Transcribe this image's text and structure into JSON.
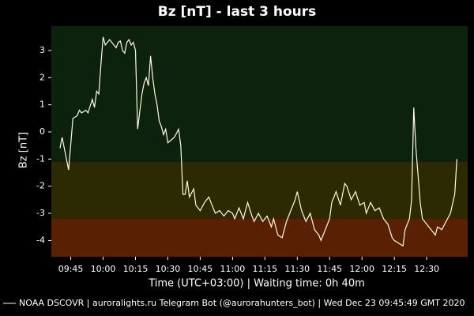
{
  "chart_data": {
    "type": "line",
    "title": "Bz [nT] - last 3 hours",
    "y_label": "Bz [nT]",
    "x_label": "Time (UTC+03:00) | Waiting time: 0h 40m",
    "xlim": [
      "09:36",
      "12:49"
    ],
    "xticks": [
      "09:45",
      "10:00",
      "10:15",
      "10:30",
      "10:45",
      "11:00",
      "11:15",
      "11:30",
      "11:45",
      "12:00",
      "12:15",
      "12:30"
    ],
    "ylim": [
      -4.6,
      3.9
    ],
    "yticks": [
      -4,
      -3,
      -2,
      -1,
      0,
      1,
      2,
      3
    ],
    "bands": [
      {
        "from": 3.9,
        "to": -1.1,
        "color": "#0c220c"
      },
      {
        "from": -1.1,
        "to": -3.2,
        "color": "#2c2a02"
      },
      {
        "from": -3.2,
        "to": -4.6,
        "color": "#5a2004"
      }
    ],
    "series": [
      {
        "name": "NOAA DSCOVR | auroralights.ru Telegram Bot (@aurorahunters_bot) | Wed Dec 23 09:45:49 GMT 2020",
        "color": "#fffbe0",
        "x": [
          "09:40",
          "09:41",
          "09:44",
          "09:46",
          "09:48",
          "09:49",
          "09:50",
          "09:52",
          "09:53",
          "09:55",
          "09:56",
          "09:57",
          "09:58",
          "09:59",
          "10:00",
          "10:01",
          "10:03",
          "10:05",
          "10:06",
          "10:07",
          "10:08",
          "10:09",
          "10:10",
          "10:11",
          "10:12",
          "10:13",
          "10:14",
          "10:15",
          "10:16",
          "10:18",
          "10:19",
          "10:20",
          "10:21",
          "10:22",
          "10:23",
          "10:24",
          "10:25",
          "10:26",
          "10:27",
          "10:28",
          "10:29",
          "10:30",
          "10:33",
          "10:35",
          "10:36",
          "10:37",
          "10:38",
          "10:39",
          "10:40",
          "10:42",
          "10:43",
          "10:45",
          "10:47",
          "10:49",
          "10:51",
          "10:52",
          "10:54",
          "10:56",
          "10:58",
          "11:00",
          "11:01",
          "11:03",
          "11:05",
          "11:07",
          "11:09",
          "11:10",
          "11:12",
          "11:14",
          "11:16",
          "11:18",
          "11:19",
          "11:21",
          "11:23",
          "11:25",
          "11:27",
          "11:29",
          "11:30",
          "11:32",
          "11:34",
          "11:36",
          "11:38",
          "11:40",
          "11:41",
          "11:43",
          "11:45",
          "11:46",
          "11:48",
          "11:50",
          "11:52",
          "11:53",
          "11:55",
          "11:57",
          "11:59",
          "12:01",
          "12:02",
          "12:04",
          "12:06",
          "12:08",
          "12:10",
          "12:12",
          "12:14",
          "12:15",
          "12:17",
          "12:19",
          "12:20",
          "12:22",
          "12:23",
          "12:24",
          "12:25",
          "12:27",
          "12:28",
          "12:30",
          "12:32",
          "12:34",
          "12:35",
          "12:37",
          "12:39",
          "12:41",
          "12:43",
          "12:44"
        ],
        "values": [
          -0.6,
          -0.2,
          -1.4,
          0.5,
          0.6,
          0.8,
          0.7,
          0.8,
          0.7,
          1.2,
          0.9,
          1.5,
          1.4,
          2.5,
          3.5,
          3.2,
          3.4,
          3.2,
          3.1,
          3.3,
          3.35,
          3.0,
          2.9,
          3.3,
          3.4,
          3.2,
          3.3,
          3.0,
          0.1,
          1.4,
          1.8,
          2.0,
          1.7,
          2.8,
          2.0,
          1.4,
          1.0,
          0.4,
          0.2,
          -0.1,
          0.1,
          -0.4,
          -0.2,
          0.1,
          -0.5,
          -2.3,
          -2.3,
          -1.8,
          -2.4,
          -2.1,
          -2.7,
          -2.9,
          -2.6,
          -2.4,
          -2.8,
          -3.0,
          -2.9,
          -3.1,
          -2.9,
          -3.0,
          -3.2,
          -2.8,
          -3.2,
          -2.6,
          -3.1,
          -3.3,
          -3.0,
          -3.3,
          -3.1,
          -3.5,
          -3.2,
          -3.8,
          -3.9,
          -3.3,
          -2.9,
          -2.5,
          -2.2,
          -2.9,
          -3.3,
          -3.0,
          -3.6,
          -3.8,
          -4.0,
          -3.6,
          -3.2,
          -2.6,
          -2.2,
          -2.7,
          -1.9,
          -2.0,
          -2.5,
          -2.2,
          -2.7,
          -2.6,
          -3.0,
          -2.6,
          -2.9,
          -2.8,
          -3.2,
          -3.4,
          -3.9,
          -4.0,
          -4.1,
          -4.2,
          -3.6,
          -3.2,
          -2.5,
          0.9,
          -0.6,
          -2.6,
          -3.2,
          -3.4,
          -3.6,
          -3.8,
          -3.5,
          -3.6,
          -3.3,
          -3.0,
          -2.3,
          -1.0
        ]
      }
    ]
  }
}
